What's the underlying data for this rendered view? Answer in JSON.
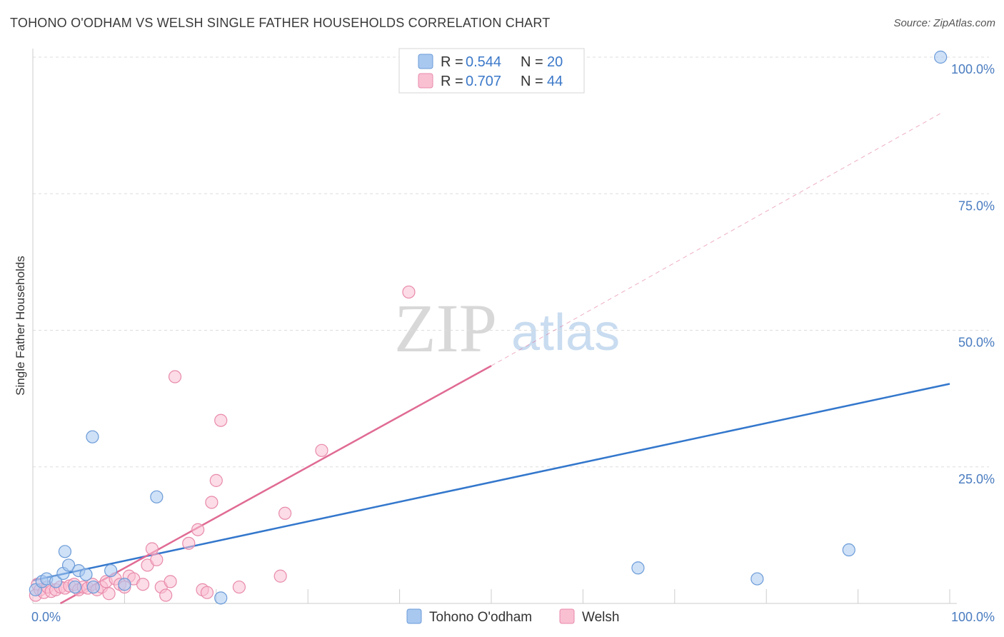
{
  "chart_data": {
    "type": "scatter",
    "title": "TOHONO O'ODHAM VS WELSH SINGLE FATHER HOUSEHOLDS CORRELATION CHART",
    "source": "Source: ZipAtlas.com",
    "ylabel": "Single Father Households",
    "xlabel": "",
    "xlim": [
      0,
      100
    ],
    "ylim": [
      0,
      100
    ],
    "x_tick_labels": [
      "0.0%",
      "100.0%"
    ],
    "y_tick_labels": [
      "100.0%",
      "75.0%",
      "50.0%",
      "25.0%"
    ],
    "y_tick_values": [
      100,
      75,
      50,
      25
    ],
    "watermark": {
      "zip": "ZIP",
      "atlas": "atlas"
    },
    "legend": {
      "entries": [
        {
          "r_label": "R =",
          "r_value": "0.544",
          "n_label": "N =",
          "n_value": "20",
          "color": "#a8c8f0",
          "edge": "#6b9bd8"
        },
        {
          "r_label": "R =",
          "r_value": "0.707",
          "n_label": "N =",
          "n_value": "44",
          "color": "#f9c0d2",
          "edge": "#e88aab"
        }
      ]
    },
    "series": [
      {
        "name": "Tohono O'odham",
        "color": "#a8c8f0",
        "edge": "#6b9bd8",
        "line_color": "#3377cc",
        "trend": {
          "x": [
            0,
            100
          ],
          "y": [
            4.2,
            40.2
          ]
        },
        "points": [
          [
            0.3,
            2.5
          ],
          [
            1.0,
            4.0
          ],
          [
            1.5,
            4.5
          ],
          [
            2.5,
            4.0
          ],
          [
            3.3,
            5.5
          ],
          [
            3.5,
            9.5
          ],
          [
            3.9,
            7.0
          ],
          [
            4.6,
            3.0
          ],
          [
            5.0,
            6.0
          ],
          [
            5.8,
            5.3
          ],
          [
            6.5,
            30.5
          ],
          [
            6.6,
            3.0
          ],
          [
            8.5,
            6.0
          ],
          [
            10.0,
            3.5
          ],
          [
            13.5,
            19.5
          ],
          [
            20.5,
            1.0
          ],
          [
            66.0,
            6.5
          ],
          [
            79.0,
            4.5
          ],
          [
            89.0,
            9.8
          ],
          [
            99.0,
            100.0
          ]
        ]
      },
      {
        "name": "Welsh",
        "color": "#f9c0d2",
        "edge": "#e88aab",
        "line_color": "#e06b94",
        "trend": {
          "x": [
            3.0,
            50.0
          ],
          "y": [
            0.0,
            43.5
          ]
        },
        "trend_ext": {
          "x": [
            50.0,
            99.0
          ],
          "y": [
            43.5,
            89.7
          ]
        },
        "points": [
          [
            0.3,
            1.5
          ],
          [
            0.5,
            3.5
          ],
          [
            0.8,
            2.5
          ],
          [
            1.2,
            2.0
          ],
          [
            1.6,
            3.0
          ],
          [
            2.0,
            2.2
          ],
          [
            2.5,
            2.5
          ],
          [
            3.0,
            3.0
          ],
          [
            3.5,
            2.8
          ],
          [
            4.0,
            3.2
          ],
          [
            4.5,
            3.5
          ],
          [
            5.0,
            2.5
          ],
          [
            5.5,
            3.0
          ],
          [
            6.0,
            2.8
          ],
          [
            6.5,
            3.5
          ],
          [
            7.0,
            2.5
          ],
          [
            7.5,
            3.0
          ],
          [
            8.0,
            4.0
          ],
          [
            8.3,
            1.8
          ],
          [
            9.0,
            4.5
          ],
          [
            9.5,
            3.5
          ],
          [
            10.0,
            3.0
          ],
          [
            10.5,
            5.0
          ],
          [
            11.0,
            4.5
          ],
          [
            12.0,
            3.5
          ],
          [
            12.5,
            7.0
          ],
          [
            13.0,
            10.0
          ],
          [
            13.5,
            8.0
          ],
          [
            14.0,
            3.0
          ],
          [
            14.5,
            1.5
          ],
          [
            15.0,
            4.0
          ],
          [
            15.5,
            41.5
          ],
          [
            17.0,
            11.0
          ],
          [
            18.0,
            13.5
          ],
          [
            19.5,
            18.5
          ],
          [
            20.0,
            22.5
          ],
          [
            20.5,
            33.5
          ],
          [
            18.5,
            2.5
          ],
          [
            22.5,
            3.0
          ],
          [
            27.0,
            5.0
          ],
          [
            27.5,
            16.5
          ],
          [
            31.5,
            28.0
          ],
          [
            41.0,
            57.0
          ],
          [
            19.0,
            2.0
          ]
        ]
      }
    ]
  }
}
